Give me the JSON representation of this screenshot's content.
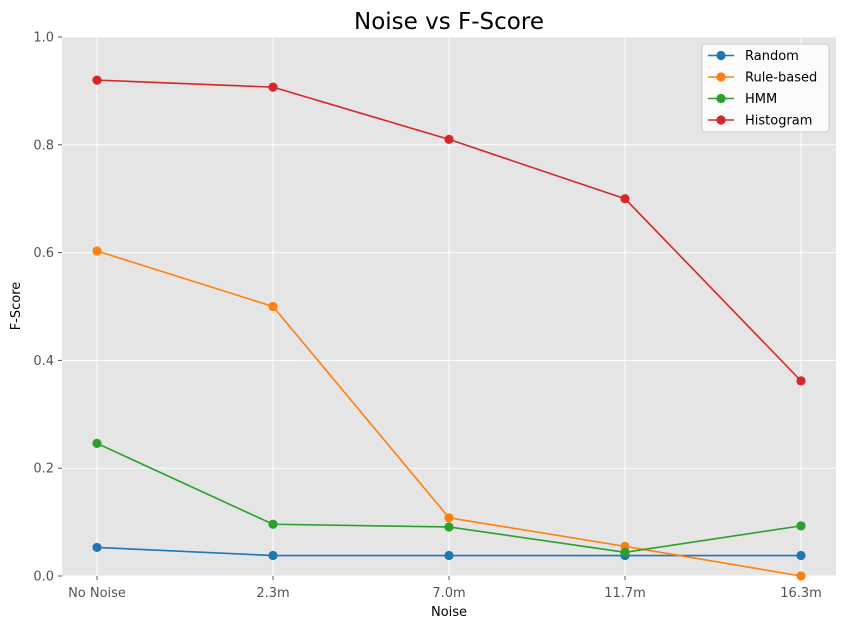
{
  "chart_data": {
    "type": "line",
    "title": "Noise vs F-Score",
    "xlabel": "Noise",
    "ylabel": "F-Score",
    "categories": [
      "No Noise",
      "2.3m",
      "7.0m",
      "11.7m",
      "16.3m"
    ],
    "ylim": [
      0,
      1.0
    ],
    "yticks": [
      "0.0",
      "0.2",
      "0.4",
      "0.6",
      "0.8",
      "1.0"
    ],
    "grid": true,
    "legend": "top-right",
    "series": [
      {
        "name": "Random",
        "color": "#1f77b4",
        "values": [
          0.053,
          0.038,
          0.038,
          0.038,
          0.038
        ]
      },
      {
        "name": "Rule-based",
        "color": "#ff7f0e",
        "values": [
          0.603,
          0.5,
          0.108,
          0.055,
          0.0
        ]
      },
      {
        "name": "HMM",
        "color": "#2ca02c",
        "values": [
          0.246,
          0.096,
          0.091,
          0.044,
          0.093
        ]
      },
      {
        "name": "Histogram",
        "color": "#d62728",
        "values": [
          0.92,
          0.907,
          0.81,
          0.7,
          0.362
        ]
      }
    ]
  }
}
